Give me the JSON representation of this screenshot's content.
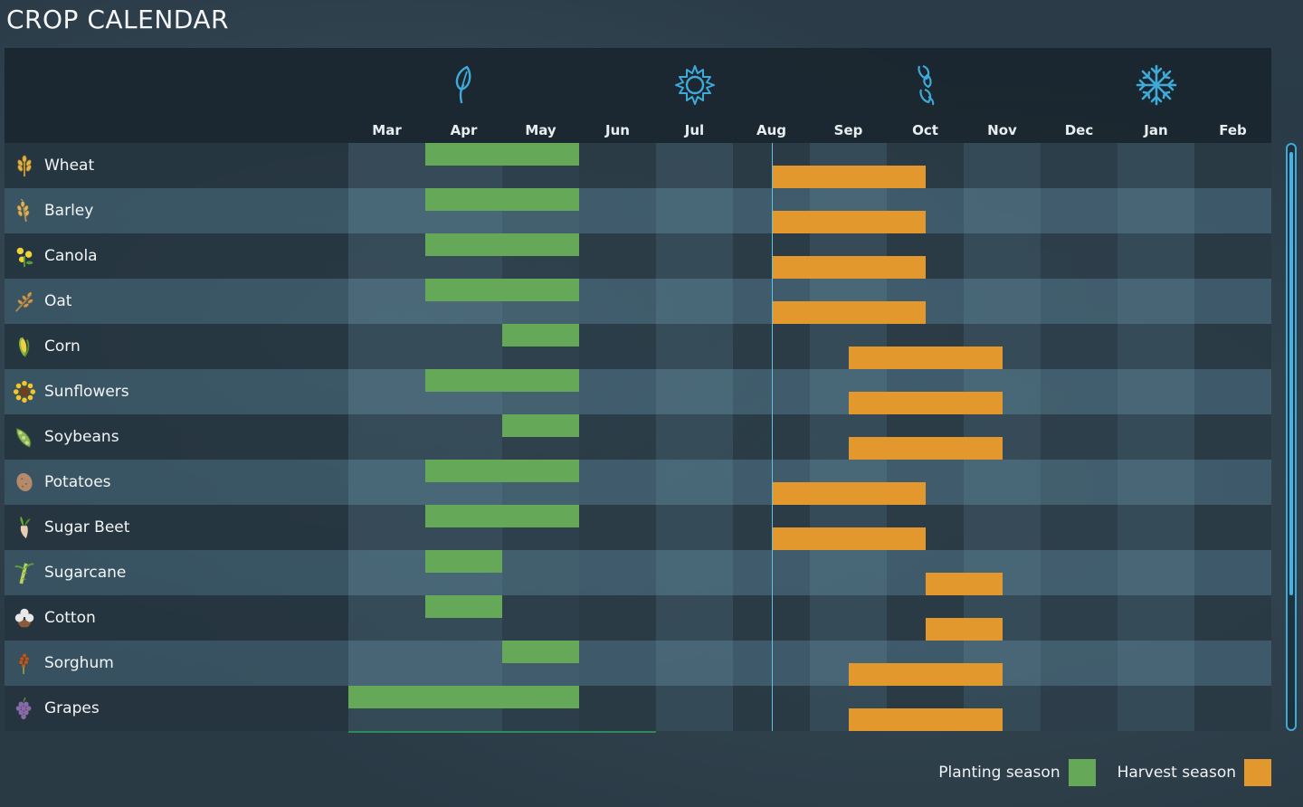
{
  "title": "CROP CALENDAR",
  "colors": {
    "planting": "#64a858",
    "harvest": "#e3982d",
    "accent": "#3fa9d8"
  },
  "seasons": [
    {
      "name": "spring",
      "icon": "sprout-icon",
      "month": "Apr"
    },
    {
      "name": "summer",
      "icon": "sun-icon",
      "month": "Jul"
    },
    {
      "name": "autumn",
      "icon": "falling-leaves-icon",
      "month": "Oct"
    },
    {
      "name": "winter",
      "icon": "snowflake-icon",
      "month": "Jan"
    }
  ],
  "months": [
    "Mar",
    "Apr",
    "May",
    "Jun",
    "Jul",
    "Aug",
    "Sep",
    "Oct",
    "Nov",
    "Dec",
    "Jan",
    "Feb"
  ],
  "current_month": "Aug",
  "crops": [
    {
      "name": "Wheat",
      "icon": "wheat-icon",
      "plant": [
        "Apr",
        "May"
      ],
      "harvest": [
        5.5,
        7.5
      ]
    },
    {
      "name": "Barley",
      "icon": "barley-icon",
      "plant": [
        "Apr",
        "May"
      ],
      "harvest": [
        5.5,
        7.5
      ]
    },
    {
      "name": "Canola",
      "icon": "canola-icon",
      "plant": [
        "Apr",
        "May"
      ],
      "harvest": [
        5.5,
        7.5
      ]
    },
    {
      "name": "Oat",
      "icon": "oat-icon",
      "plant": [
        "Apr",
        "May"
      ],
      "harvest": [
        5.5,
        7.5
      ]
    },
    {
      "name": "Corn",
      "icon": "corn-icon",
      "plant": [
        "May"
      ],
      "harvest": [
        6.5,
        8.5
      ]
    },
    {
      "name": "Sunflowers",
      "icon": "sunflower-icon",
      "plant": [
        "Apr",
        "May"
      ],
      "harvest": [
        6.5,
        8.5
      ]
    },
    {
      "name": "Soybeans",
      "icon": "soybean-icon",
      "plant": [
        "May"
      ],
      "harvest": [
        6.5,
        8.5
      ]
    },
    {
      "name": "Potatoes",
      "icon": "potato-icon",
      "plant": [
        "Apr",
        "May"
      ],
      "harvest": [
        5.5,
        7.5
      ]
    },
    {
      "name": "Sugar Beet",
      "icon": "sugar-beet-icon",
      "plant": [
        "Apr",
        "May"
      ],
      "harvest": [
        5.5,
        7.5
      ]
    },
    {
      "name": "Sugarcane",
      "icon": "sugarcane-icon",
      "plant": [
        "Apr"
      ],
      "harvest": [
        7.5,
        8.5
      ]
    },
    {
      "name": "Cotton",
      "icon": "cotton-icon",
      "plant": [
        "Apr"
      ],
      "harvest": [
        7.5,
        8.5
      ]
    },
    {
      "name": "Sorghum",
      "icon": "sorghum-icon",
      "plant": [
        "May"
      ],
      "harvest": [
        6.5,
        8.5
      ]
    },
    {
      "name": "Grapes",
      "icon": "grapes-icon",
      "plant": [
        "Mar",
        "Apr",
        "May"
      ],
      "harvest": [
        6.5,
        8.5
      ]
    }
  ],
  "legend": {
    "planting_label": "Planting season",
    "harvest_label": "Harvest season"
  }
}
